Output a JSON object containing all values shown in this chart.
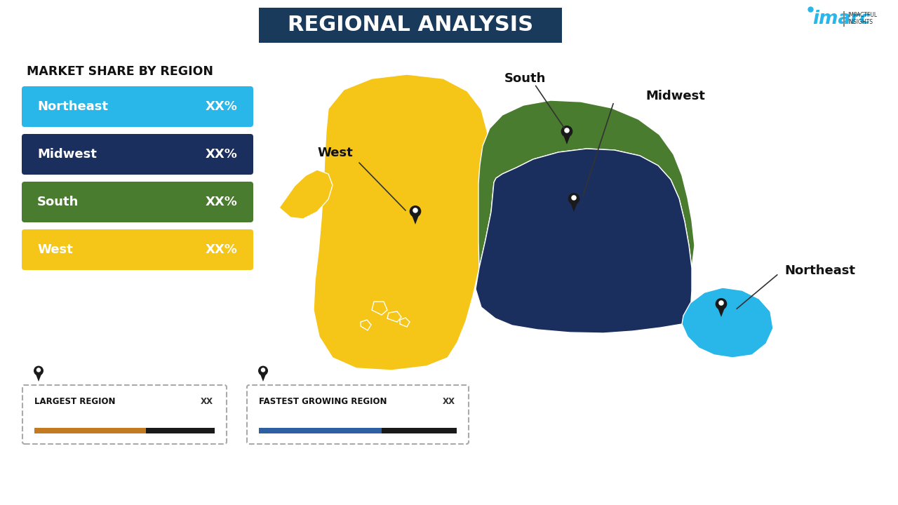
{
  "title": "REGIONAL ANALYSIS",
  "title_bg_color": "#1a3a5c",
  "title_text_color": "#ffffff",
  "subtitle": "MARKET SHARE BY REGION",
  "background_color": "#ffffff",
  "regions": [
    "Northeast",
    "Midwest",
    "South",
    "West"
  ],
  "region_colors": [
    "#29b6e8",
    "#1b2f5e",
    "#4a7c2f",
    "#f5c518"
  ],
  "region_values": [
    "XX%",
    "XX%",
    "XX%",
    "XX%"
  ],
  "legend_bottom_left": "LARGEST REGION",
  "legend_bottom_right": "FASTEST GROWING REGION",
  "legend_bottom_value": "XX",
  "bar_color_orange": "#c47a20",
  "bar_color_dark": "#1a1a1a",
  "bar_color_blue": "#2e5fa3",
  "imarc_blue": "#29b6e8",
  "map_colors": {
    "West": "#f5c518",
    "Midwest": "#1b2f5e",
    "South": "#4a7c2f",
    "Northeast": "#29b6e8"
  },
  "pin_color": "#1a1a1a",
  "label_font_size": 11,
  "region_label_font_size": 13,
  "title_font_size": 22
}
